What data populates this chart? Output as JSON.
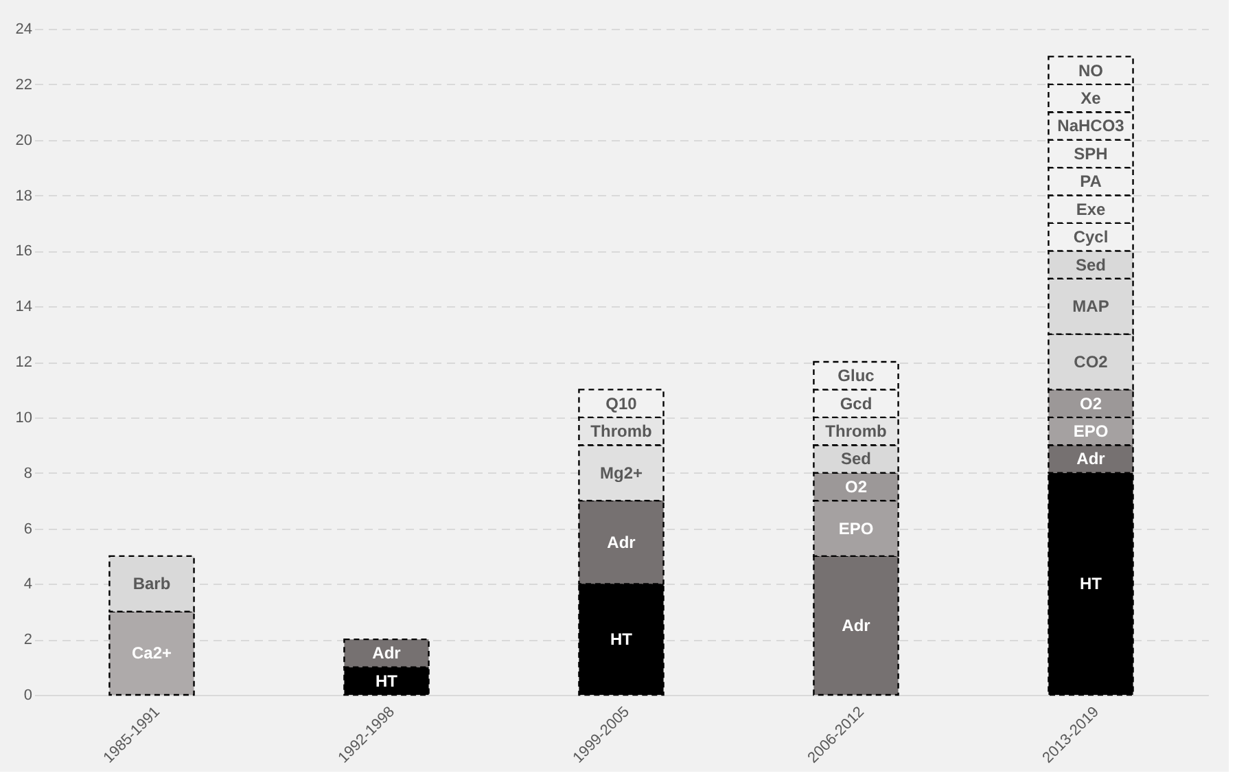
{
  "chart_data": {
    "type": "bar",
    "stacked": true,
    "categories": [
      "1985-1991",
      "1992-1998",
      "1999-2005",
      "2006-2012",
      "2013-2019"
    ],
    "ylim": [
      0,
      24
    ],
    "yticks": [
      0,
      2,
      4,
      6,
      8,
      10,
      12,
      14,
      16,
      18,
      20,
      22,
      24
    ],
    "grid": "y",
    "legend": false,
    "line_style": "dashed",
    "series": [
      {
        "name": "HT",
        "color": "#000000",
        "values": [
          null,
          1,
          4,
          null,
          8
        ]
      },
      {
        "name": "Adr",
        "color": "#767171",
        "values": [
          null,
          1,
          3,
          5,
          1
        ]
      },
      {
        "name": "Ca2+",
        "color": "#aeaaaa",
        "values": [
          3,
          null,
          null,
          null,
          null
        ]
      },
      {
        "name": "Barb",
        "color": "#d9d9d9",
        "values": [
          2,
          null,
          null,
          null,
          null
        ]
      },
      {
        "name": "EPO",
        "color": "#a5a1a1",
        "values": [
          null,
          null,
          null,
          2,
          1
        ]
      },
      {
        "name": "O2",
        "color": "#9c9898",
        "values": [
          null,
          null,
          null,
          1,
          1
        ]
      },
      {
        "name": "CO2",
        "color": "#dadada",
        "values": [
          null,
          null,
          null,
          null,
          2
        ]
      },
      {
        "name": "MAP",
        "color": "#dadada",
        "values": [
          null,
          null,
          null,
          null,
          2
        ]
      },
      {
        "name": "Sed",
        "color": "#d9d9d9",
        "values": [
          null,
          null,
          null,
          1,
          1
        ]
      },
      {
        "name": "Mg2+",
        "color": "#e0e0e0",
        "values": [
          null,
          null,
          2,
          null,
          null
        ]
      },
      {
        "name": "Thromb",
        "color": "#e6e6e6",
        "values": [
          null,
          null,
          1,
          1,
          null
        ]
      },
      {
        "name": "Q10",
        "color": "#f2f2f2",
        "values": [
          null,
          null,
          1,
          null,
          null
        ]
      },
      {
        "name": "Gcd",
        "color": "#f2f2f2",
        "values": [
          null,
          null,
          null,
          1,
          null
        ]
      },
      {
        "name": "Gluc",
        "color": "#f2f2f2",
        "values": [
          null,
          null,
          null,
          1,
          null
        ]
      },
      {
        "name": "Cycl",
        "color": "#f2f2f2",
        "values": [
          null,
          null,
          null,
          null,
          1
        ]
      },
      {
        "name": "Exe",
        "color": "#f2f2f2",
        "values": [
          null,
          null,
          null,
          null,
          1
        ]
      },
      {
        "name": "PA",
        "color": "#f2f2f2",
        "values": [
          null,
          null,
          null,
          null,
          1
        ]
      },
      {
        "name": "SPH",
        "color": "#f2f2f2",
        "values": [
          null,
          null,
          null,
          null,
          1
        ]
      },
      {
        "name": "NaHCO3",
        "color": "#f2f2f2",
        "values": [
          null,
          null,
          null,
          null,
          1
        ]
      },
      {
        "name": "Xe",
        "color": "#f2f2f2",
        "values": [
          null,
          null,
          null,
          null,
          1
        ]
      },
      {
        "name": "NO",
        "color": "#f2f2f2",
        "values": [
          null,
          null,
          null,
          null,
          1
        ]
      }
    ]
  }
}
